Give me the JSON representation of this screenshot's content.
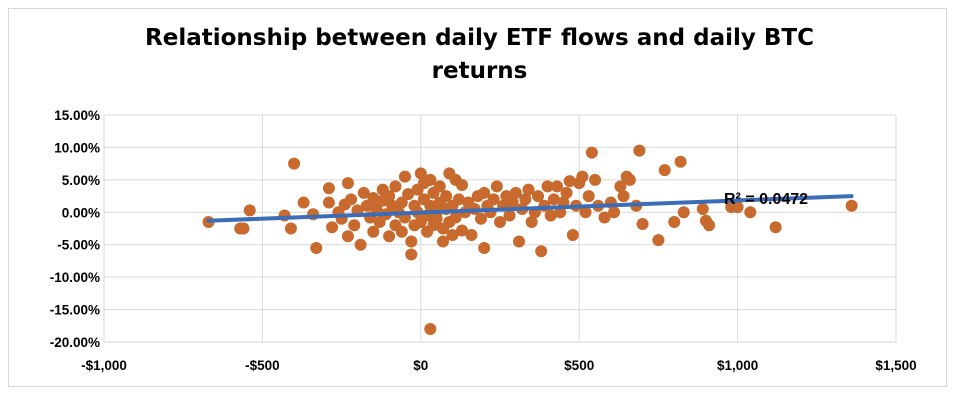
{
  "chart_data": {
    "type": "scatter",
    "title_line1": "Relationship between daily ETF flows and daily BTC",
    "title_line2": "returns",
    "xlabel": "",
    "ylabel": "",
    "xlim": [
      -1000,
      1500
    ],
    "ylim": [
      -0.2,
      0.15
    ],
    "x_ticks": [
      -1000,
      -500,
      0,
      500,
      1000,
      1500
    ],
    "x_tick_labels": [
      "-$1,000",
      "-$500",
      "$0",
      "$500",
      "$1,000",
      "$1,500"
    ],
    "y_ticks": [
      0.15,
      0.1,
      0.05,
      0.0,
      -0.05,
      -0.1,
      -0.15,
      -0.2
    ],
    "y_tick_labels": [
      "15.00%",
      "10.00%",
      "5.00%",
      "0.00%",
      "-5.00%",
      "-10.00%",
      "-15.00%",
      "-20.00%"
    ],
    "grid": "vertical and horizontal major gridlines",
    "marker_color": "#c8692d",
    "trendline": {
      "type": "linear",
      "color": "#3a6db5",
      "x_range": [
        -670,
        1360
      ],
      "y_start": -0.013,
      "y_end": 0.025,
      "r2_label": "R² = 0.0472"
    },
    "points": [
      [
        -670,
        -0.015
      ],
      [
        -570,
        -0.025
      ],
      [
        -560,
        -0.025
      ],
      [
        -540,
        0.003
      ],
      [
        -430,
        -0.005
      ],
      [
        -410,
        -0.025
      ],
      [
        -400,
        0.075
      ],
      [
        -370,
        0.015
      ],
      [
        -340,
        -0.003
      ],
      [
        -330,
        -0.055
      ],
      [
        -290,
        0.037
      ],
      [
        -290,
        0.015
      ],
      [
        -280,
        -0.023
      ],
      [
        -260,
        0.0
      ],
      [
        -250,
        -0.01
      ],
      [
        -240,
        0.012
      ],
      [
        -230,
        0.045
      ],
      [
        -230,
        -0.037
      ],
      [
        -220,
        0.02
      ],
      [
        -210,
        -0.02
      ],
      [
        -200,
        0.003
      ],
      [
        -190,
        -0.05
      ],
      [
        -180,
        0.03
      ],
      [
        -170,
        0.01
      ],
      [
        -160,
        -0.008
      ],
      [
        -150,
        0.022
      ],
      [
        -150,
        -0.03
      ],
      [
        -140,
        0.005
      ],
      [
        -130,
        -0.015
      ],
      [
        -120,
        0.035
      ],
      [
        -120,
        0.018
      ],
      [
        -110,
        -0.003
      ],
      [
        -100,
        -0.037
      ],
      [
        -100,
        0.025
      ],
      [
        -90,
        0.01
      ],
      [
        -80,
        -0.02
      ],
      [
        -80,
        0.04
      ],
      [
        -70,
        0.0
      ],
      [
        -60,
        0.015
      ],
      [
        -60,
        -0.03
      ],
      [
        -50,
        0.055
      ],
      [
        -50,
        -0.008
      ],
      [
        -40,
        0.028
      ],
      [
        -30,
        -0.045
      ],
      [
        -30,
        -0.065
      ],
      [
        -20,
        0.01
      ],
      [
        -20,
        -0.02
      ],
      [
        -10,
        0.035
      ],
      [
        -10,
        0.0
      ],
      [
        0,
        0.06
      ],
      [
        0,
        -0.015
      ],
      [
        10,
        0.02
      ],
      [
        10,
        0.045
      ],
      [
        20,
        -0.005
      ],
      [
        20,
        -0.03
      ],
      [
        30,
        0.05
      ],
      [
        30,
        0.01
      ],
      [
        40,
        -0.02
      ],
      [
        40,
        0.03
      ],
      [
        50,
        0.0
      ],
      [
        50,
        -0.01
      ],
      [
        60,
        0.015
      ],
      [
        60,
        0.04
      ],
      [
        70,
        -0.025
      ],
      [
        70,
        -0.045
      ],
      [
        80,
        0.005
      ],
      [
        80,
        0.025
      ],
      [
        90,
        0.06
      ],
      [
        90,
        -0.015
      ],
      [
        100,
        0.01
      ],
      [
        100,
        -0.035
      ],
      [
        110,
        0.05
      ],
      [
        110,
        -0.008
      ],
      [
        120,
        0.02
      ],
      [
        130,
        0.042
      ],
      [
        130,
        -0.028
      ],
      [
        140,
        0.0
      ],
      [
        150,
        0.015
      ],
      [
        160,
        -0.035
      ],
      [
        170,
        0.005
      ],
      [
        180,
        0.025
      ],
      [
        190,
        -0.01
      ],
      [
        200,
        -0.055
      ],
      [
        200,
        0.03
      ],
      [
        210,
        0.01
      ],
      [
        220,
        0.0
      ],
      [
        230,
        0.02
      ],
      [
        240,
        0.04
      ],
      [
        250,
        -0.015
      ],
      [
        260,
        0.01
      ],
      [
        270,
        0.025
      ],
      [
        280,
        -0.005
      ],
      [
        290,
        0.015
      ],
      [
        300,
        0.03
      ],
      [
        310,
        -0.045
      ],
      [
        320,
        0.005
      ],
      [
        330,
        0.02
      ],
      [
        340,
        0.035
      ],
      [
        350,
        -0.015
      ],
      [
        360,
        0.0
      ],
      [
        370,
        0.025
      ],
      [
        380,
        -0.06
      ],
      [
        390,
        0.01
      ],
      [
        400,
        0.04
      ],
      [
        410,
        -0.005
      ],
      [
        420,
        0.02
      ],
      [
        430,
        0.04
      ],
      [
        440,
        0.0
      ],
      [
        450,
        0.015
      ],
      [
        460,
        0.03
      ],
      [
        470,
        0.048
      ],
      [
        480,
        -0.035
      ],
      [
        490,
        0.01
      ],
      [
        500,
        0.045
      ],
      [
        510,
        0.055
      ],
      [
        520,
        0.0
      ],
      [
        530,
        0.025
      ],
      [
        540,
        0.092
      ],
      [
        550,
        0.05
      ],
      [
        560,
        0.01
      ],
      [
        580,
        -0.008
      ],
      [
        600,
        0.015
      ],
      [
        610,
        0.0
      ],
      [
        630,
        0.04
      ],
      [
        640,
        0.025
      ],
      [
        650,
        0.055
      ],
      [
        660,
        0.05
      ],
      [
        680,
        0.01
      ],
      [
        690,
        0.095
      ],
      [
        700,
        -0.018
      ],
      [
        750,
        -0.043
      ],
      [
        770,
        0.065
      ],
      [
        800,
        -0.015
      ],
      [
        820,
        0.078
      ],
      [
        830,
        0.0
      ],
      [
        890,
        0.005
      ],
      [
        900,
        -0.013
      ],
      [
        910,
        -0.02
      ],
      [
        980,
        0.008
      ],
      [
        1000,
        0.008
      ],
      [
        1040,
        0.0
      ],
      [
        1120,
        -0.023
      ],
      [
        1360,
        0.01
      ],
      [
        30,
        -0.18
      ]
    ]
  }
}
